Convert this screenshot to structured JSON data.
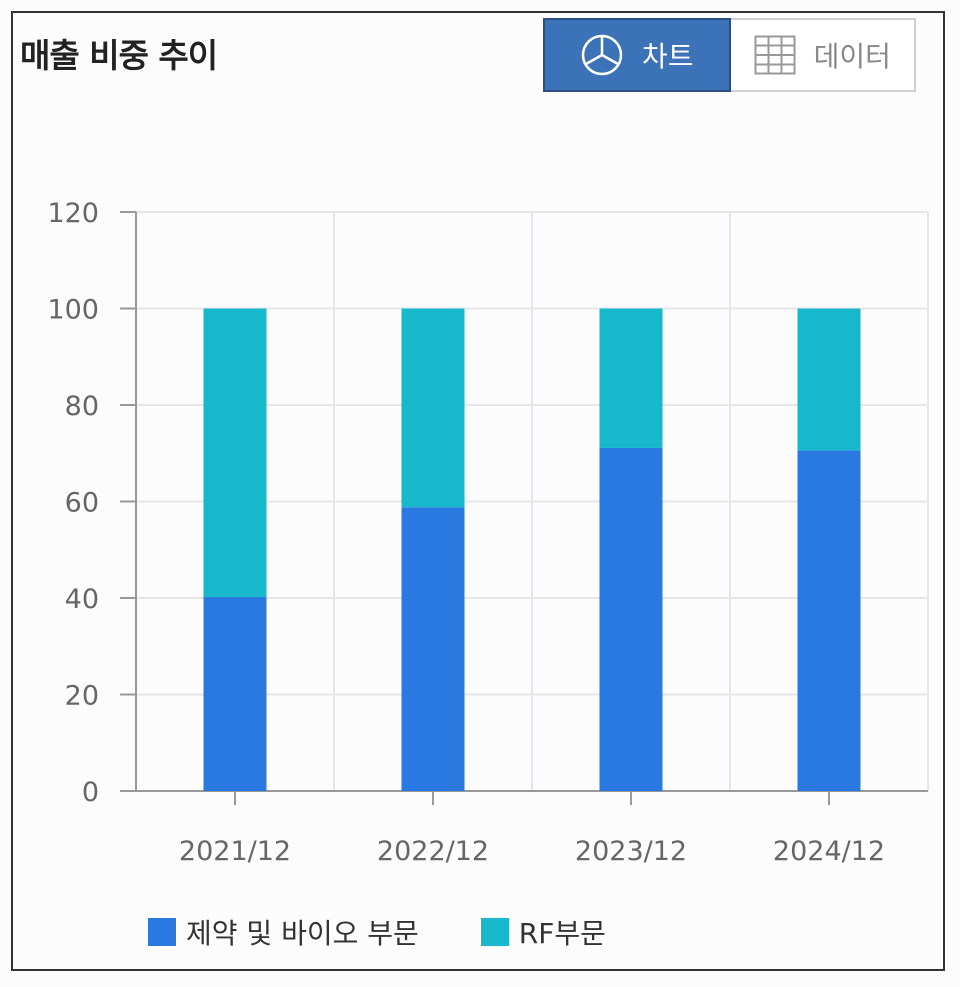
{
  "header": {
    "title": "매출 비중 추이"
  },
  "toggle": {
    "chart_label": "차트",
    "data_label": "데이터",
    "chart_icon": "pie-chart-icon",
    "data_icon": "table-grid-icon"
  },
  "colors": {
    "series1": "#2a79e0",
    "series2": "#17b7cc",
    "grid": "#e6e6ea",
    "axis": "#999999"
  },
  "chart_data": {
    "type": "bar",
    "stacked": true,
    "categories": [
      "2021/12",
      "2022/12",
      "2023/12",
      "2024/12"
    ],
    "series": [
      {
        "name": "제약 및 바이오 부문",
        "values": [
          40.2,
          58.8,
          71.1,
          70.6
        ]
      },
      {
        "name": "RF부문",
        "values": [
          59.8,
          41.2,
          28.9,
          29.4
        ]
      }
    ],
    "ylim": [
      0,
      120
    ],
    "yticks": [
      0,
      20,
      40,
      60,
      80,
      100,
      120
    ],
    "grid": true,
    "legend": "bottom-left"
  }
}
